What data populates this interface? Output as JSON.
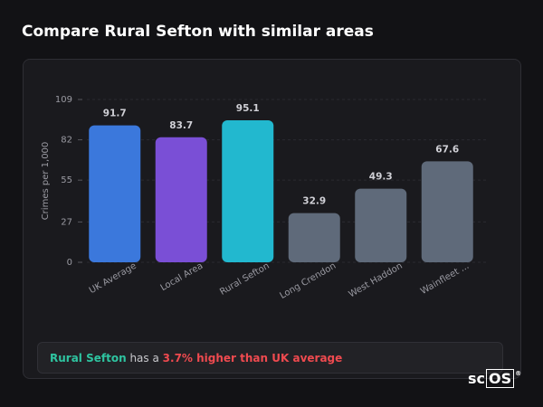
{
  "header": {
    "title": "Compare Rural Sefton with similar areas"
  },
  "chart_data": {
    "type": "bar",
    "y_label": "Crimes per 1,000",
    "categories": [
      "UK Average",
      "Local Area",
      "Rural Sefton",
      "Long Crendon",
      "West Haddon",
      "Wainfleet ..."
    ],
    "values": [
      91.7,
      83.7,
      95.1,
      32.9,
      49.3,
      67.6
    ],
    "colors": [
      "#3b78dc",
      "#7a4fd6",
      "#22b8cf",
      "#5f6a7a",
      "#5f6a7a",
      "#5f6a7a"
    ],
    "ylim": [
      0,
      109
    ],
    "yticks": [
      0,
      27,
      55,
      82,
      109
    ],
    "grid": true
  },
  "summary": {
    "subject": "Rural Sefton",
    "text": "has a",
    "highlight": "3.7% higher than UK average"
  },
  "logo": {
    "prefix": "sc",
    "boxed": "OS",
    "mark": "®"
  }
}
